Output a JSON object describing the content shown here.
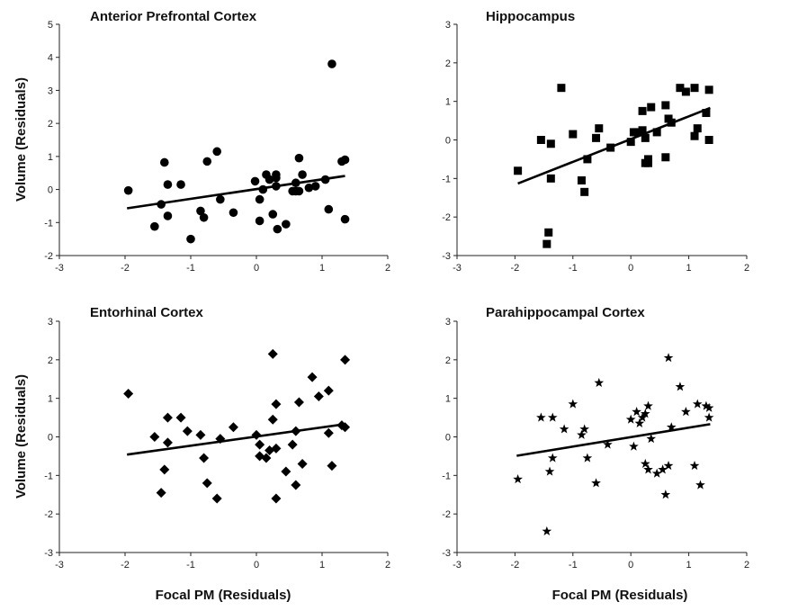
{
  "figure": {
    "ylabel_left": "Volume (Residuals)",
    "xlabel_bottom": "Focal PM (Residuals)"
  },
  "chart_data": [
    {
      "type": "scatter",
      "title": "Anterior Prefrontal Cortex",
      "marker": "circle",
      "xlim": [
        -3,
        2
      ],
      "ylim": [
        -2,
        5
      ],
      "xticks": [
        -3,
        -2,
        -1,
        0,
        1,
        2
      ],
      "yticks": [
        -2,
        -1,
        0,
        1,
        2,
        3,
        4,
        5
      ],
      "trendline": {
        "x": [
          -1.97,
          1.35
        ],
        "y": [
          -0.57,
          0.41
        ]
      },
      "points": [
        [
          -1.95,
          -0.03
        ],
        [
          -1.55,
          -1.12
        ],
        [
          -1.45,
          -0.45
        ],
        [
          -1.4,
          0.82
        ],
        [
          -1.35,
          -0.8
        ],
        [
          -1.35,
          0.15
        ],
        [
          -1.15,
          0.15
        ],
        [
          -1.0,
          -1.5
        ],
        [
          -0.85,
          -0.65
        ],
        [
          -0.8,
          -0.85
        ],
        [
          -0.75,
          0.85
        ],
        [
          -0.6,
          1.15
        ],
        [
          -0.55,
          -0.3
        ],
        [
          -0.35,
          -0.7
        ],
        [
          -0.02,
          0.25
        ],
        [
          0.05,
          -0.95
        ],
        [
          0.05,
          -0.3
        ],
        [
          0.1,
          0.0
        ],
        [
          0.15,
          0.45
        ],
        [
          0.2,
          0.3
        ],
        [
          0.25,
          -0.75
        ],
        [
          0.3,
          0.35
        ],
        [
          0.3,
          0.45
        ],
        [
          0.3,
          0.1
        ],
        [
          0.32,
          -1.2
        ],
        [
          0.45,
          -1.05
        ],
        [
          0.55,
          -0.05
        ],
        [
          0.6,
          0.2
        ],
        [
          0.6,
          -0.05
        ],
        [
          0.65,
          0.95
        ],
        [
          0.65,
          -0.05
        ],
        [
          0.7,
          0.45
        ],
        [
          0.8,
          0.05
        ],
        [
          0.9,
          0.1
        ],
        [
          1.05,
          0.3
        ],
        [
          1.1,
          -0.6
        ],
        [
          1.15,
          3.8
        ],
        [
          1.3,
          0.85
        ],
        [
          1.35,
          0.9
        ],
        [
          1.35,
          -0.9
        ]
      ]
    },
    {
      "type": "scatter",
      "title": "Hippocampus",
      "marker": "square",
      "xlim": [
        -3,
        2
      ],
      "ylim": [
        -3,
        3
      ],
      "xticks": [
        -3,
        -2,
        -1,
        0,
        1,
        2
      ],
      "yticks": [
        -3,
        -2,
        -1,
        0,
        1,
        2,
        3
      ],
      "trendline": {
        "x": [
          -1.95,
          1.37
        ],
        "y": [
          -1.13,
          0.83
        ]
      },
      "points": [
        [
          -1.95,
          -0.8
        ],
        [
          -1.55,
          0.0
        ],
        [
          -1.45,
          -2.7
        ],
        [
          -1.42,
          -2.4
        ],
        [
          -1.38,
          -1.0
        ],
        [
          -1.38,
          -0.1
        ],
        [
          -1.2,
          1.35
        ],
        [
          -1.0,
          0.15
        ],
        [
          -0.85,
          -1.05
        ],
        [
          -0.8,
          -1.35
        ],
        [
          -0.75,
          -0.5
        ],
        [
          -0.6,
          0.05
        ],
        [
          -0.55,
          0.3
        ],
        [
          -0.35,
          -0.2
        ],
        [
          0.0,
          -0.05
        ],
        [
          0.05,
          0.2
        ],
        [
          0.1,
          0.2
        ],
        [
          0.2,
          0.75
        ],
        [
          0.2,
          0.25
        ],
        [
          0.25,
          -0.6
        ],
        [
          0.25,
          0.05
        ],
        [
          0.3,
          -0.5
        ],
        [
          0.3,
          -0.6
        ],
        [
          0.35,
          0.85
        ],
        [
          0.45,
          0.2
        ],
        [
          0.6,
          -0.45
        ],
        [
          0.6,
          0.9
        ],
        [
          0.65,
          0.55
        ],
        [
          0.7,
          0.45
        ],
        [
          0.85,
          1.35
        ],
        [
          0.95,
          1.25
        ],
        [
          1.1,
          1.35
        ],
        [
          1.1,
          0.1
        ],
        [
          1.15,
          0.3
        ],
        [
          1.3,
          0.7
        ],
        [
          1.35,
          1.3
        ],
        [
          1.35,
          0.0
        ]
      ]
    },
    {
      "type": "scatter",
      "title": "Entorhinal Cortex",
      "marker": "diamond",
      "xlim": [
        -3,
        2
      ],
      "ylim": [
        -3,
        3
      ],
      "xticks": [
        -3,
        -2,
        -1,
        0,
        1,
        2
      ],
      "yticks": [
        -3,
        -2,
        -1,
        0,
        1,
        2,
        3
      ],
      "trendline": {
        "x": [
          -1.97,
          1.35
        ],
        "y": [
          -0.46,
          0.33
        ]
      },
      "points": [
        [
          -1.95,
          1.12
        ],
        [
          -1.55,
          0.0
        ],
        [
          -1.45,
          -1.45
        ],
        [
          -1.4,
          -0.85
        ],
        [
          -1.35,
          0.5
        ],
        [
          -1.35,
          -0.15
        ],
        [
          -1.15,
          0.5
        ],
        [
          -1.05,
          0.15
        ],
        [
          -0.85,
          0.05
        ],
        [
          -0.8,
          -0.55
        ],
        [
          -0.75,
          -1.2
        ],
        [
          -0.6,
          -1.6
        ],
        [
          -0.55,
          -0.05
        ],
        [
          -0.35,
          0.25
        ],
        [
          0.0,
          0.05
        ],
        [
          0.05,
          -0.5
        ],
        [
          0.05,
          -0.2
        ],
        [
          0.15,
          -0.55
        ],
        [
          0.2,
          -0.35
        ],
        [
          0.25,
          2.15
        ],
        [
          0.25,
          0.45
        ],
        [
          0.3,
          -1.6
        ],
        [
          0.3,
          -0.3
        ],
        [
          0.3,
          0.85
        ],
        [
          0.45,
          -0.9
        ],
        [
          0.55,
          -0.2
        ],
        [
          0.6,
          0.15
        ],
        [
          0.6,
          -1.25
        ],
        [
          0.65,
          0.9
        ],
        [
          0.7,
          -0.7
        ],
        [
          0.85,
          1.55
        ],
        [
          0.95,
          1.05
        ],
        [
          1.1,
          1.2
        ],
        [
          1.1,
          0.1
        ],
        [
          1.15,
          -0.75
        ],
        [
          1.3,
          0.3
        ],
        [
          1.35,
          0.25
        ],
        [
          1.35,
          2.0
        ]
      ]
    },
    {
      "type": "scatter",
      "title": "Parahippocampal Cortex",
      "marker": "star",
      "xlim": [
        -3,
        2
      ],
      "ylim": [
        -3,
        3
      ],
      "xticks": [
        -3,
        -2,
        -1,
        0,
        1,
        2
      ],
      "yticks": [
        -3,
        -2,
        -1,
        0,
        1,
        2,
        3
      ],
      "trendline": {
        "x": [
          -1.97,
          1.37
        ],
        "y": [
          -0.49,
          0.33
        ]
      },
      "points": [
        [
          -1.95,
          -1.1
        ],
        [
          -1.55,
          0.5
        ],
        [
          -1.45,
          -2.45
        ],
        [
          -1.4,
          -0.9
        ],
        [
          -1.35,
          0.5
        ],
        [
          -1.35,
          -0.55
        ],
        [
          -1.15,
          0.2
        ],
        [
          -1.0,
          0.85
        ],
        [
          -0.85,
          0.05
        ],
        [
          -0.8,
          0.2
        ],
        [
          -0.75,
          -0.55
        ],
        [
          -0.6,
          -1.2
        ],
        [
          -0.55,
          1.4
        ],
        [
          -0.4,
          -0.2
        ],
        [
          0.0,
          0.45
        ],
        [
          0.05,
          -0.25
        ],
        [
          0.1,
          0.65
        ],
        [
          0.15,
          0.35
        ],
        [
          0.2,
          0.5
        ],
        [
          0.25,
          0.6
        ],
        [
          0.25,
          -0.7
        ],
        [
          0.3,
          -0.85
        ],
        [
          0.3,
          0.8
        ],
        [
          0.35,
          -0.05
        ],
        [
          0.45,
          -0.95
        ],
        [
          0.55,
          -0.85
        ],
        [
          0.6,
          -1.5
        ],
        [
          0.65,
          -0.75
        ],
        [
          0.65,
          2.05
        ],
        [
          0.7,
          0.25
        ],
        [
          0.85,
          1.3
        ],
        [
          0.95,
          0.65
        ],
        [
          1.1,
          -0.75
        ],
        [
          1.15,
          0.85
        ],
        [
          1.2,
          -1.25
        ],
        [
          1.3,
          0.8
        ],
        [
          1.35,
          0.5
        ],
        [
          1.35,
          0.75
        ]
      ]
    }
  ]
}
